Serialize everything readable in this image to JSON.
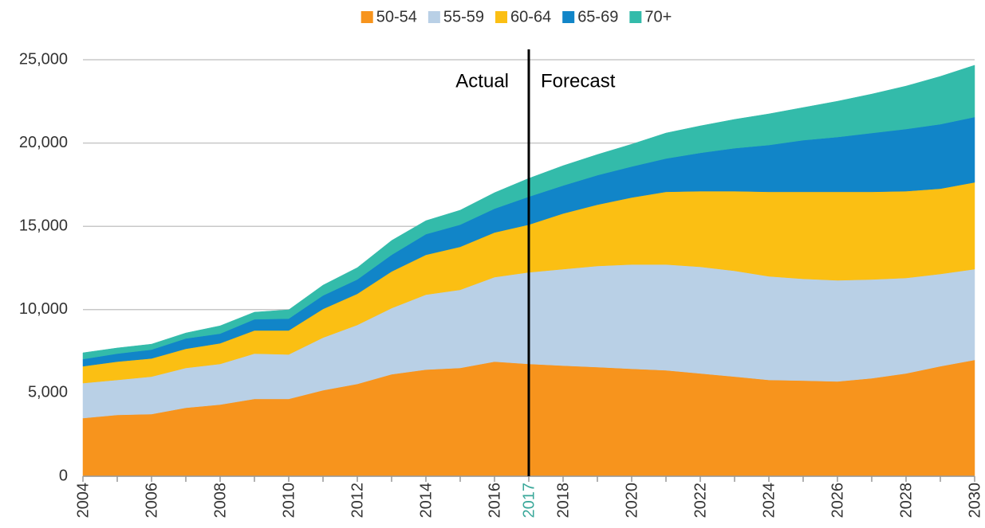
{
  "chart_data": {
    "type": "stacked_area",
    "x": [
      2004,
      2005,
      2006,
      2007,
      2008,
      2009,
      2010,
      2011,
      2012,
      2013,
      2014,
      2015,
      2016,
      2017,
      2018,
      2019,
      2020,
      2021,
      2022,
      2023,
      2024,
      2025,
      2026,
      2027,
      2028,
      2029,
      2030
    ],
    "series": [
      {
        "name": "50-54",
        "color": "#f7941d",
        "values": [
          3490,
          3680,
          3730,
          4110,
          4300,
          4640,
          4640,
          5160,
          5540,
          6120,
          6400,
          6500,
          6880,
          6740,
          6640,
          6550,
          6450,
          6360,
          6170,
          5980,
          5780,
          5740,
          5690,
          5880,
          6170,
          6600,
          6980
        ]
      },
      {
        "name": "55-59",
        "color": "#b9d0e6",
        "values": [
          2100,
          2100,
          2250,
          2390,
          2440,
          2720,
          2670,
          3160,
          3540,
          3970,
          4500,
          4690,
          5070,
          5500,
          5790,
          6070,
          6260,
          6350,
          6400,
          6350,
          6220,
          6110,
          6070,
          5930,
          5730,
          5540,
          5450
        ]
      },
      {
        "name": "60-64",
        "color": "#fbbf13",
        "values": [
          1010,
          1100,
          1090,
          1150,
          1240,
          1390,
          1440,
          1720,
          1870,
          2200,
          2390,
          2580,
          2680,
          2860,
          3340,
          3680,
          4020,
          4360,
          4540,
          4780,
          5070,
          5220,
          5310,
          5260,
          5210,
          5120,
          5210
        ]
      },
      {
        "name": "65-69",
        "color": "#1185c8",
        "values": [
          430,
          480,
          530,
          620,
          580,
          670,
          710,
          810,
          860,
          1000,
          1240,
          1330,
          1430,
          1680,
          1680,
          1770,
          1860,
          2000,
          2300,
          2580,
          2810,
          3100,
          3290,
          3530,
          3730,
          3870,
          3920
        ]
      },
      {
        "name": "70+",
        "color": "#33bbaa",
        "values": [
          380,
          340,
          330,
          330,
          470,
          430,
          530,
          620,
          710,
          860,
          810,
          870,
          960,
          1100,
          1190,
          1240,
          1340,
          1530,
          1620,
          1730,
          1870,
          1960,
          2150,
          2340,
          2580,
          2870,
          3110
        ]
      }
    ],
    "xlim": [
      2004,
      2030
    ],
    "xticks": [
      2004,
      2006,
      2008,
      2010,
      2012,
      2014,
      2016,
      2017,
      2018,
      2020,
      2022,
      2024,
      2026,
      2028,
      2030
    ],
    "highlight_tick": 2017,
    "highlight_color": "#3aa89a",
    "ylim": [
      0,
      25000
    ],
    "yticks": [
      0,
      {
        "value": 5000,
        "label": "5,000"
      },
      {
        "value": 10000,
        "label": "10,000"
      },
      {
        "value": 15000,
        "label": "15,000"
      },
      {
        "value": 20000,
        "label": "20,000"
      },
      {
        "value": 25000,
        "label": "25,000"
      }
    ],
    "grid": true,
    "legend": "top",
    "divider": {
      "x": 2017,
      "left_label": "Actual",
      "right_label": "Forecast"
    }
  }
}
